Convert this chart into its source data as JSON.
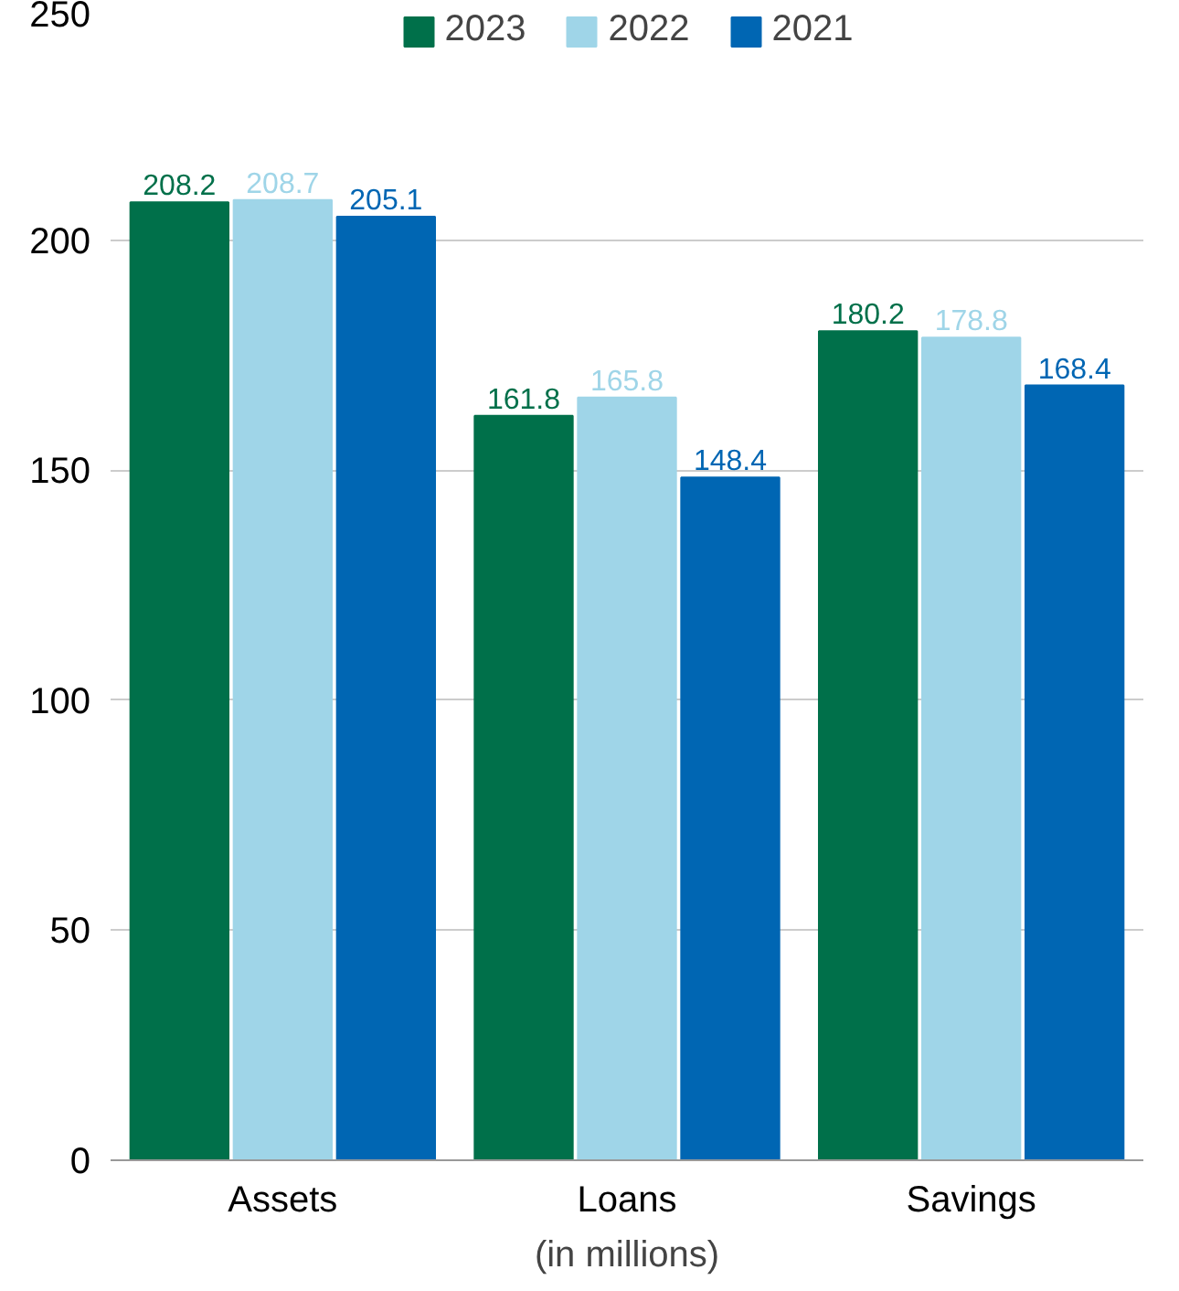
{
  "chart_data": {
    "type": "bar",
    "xlabel": "(in millions)",
    "categories": [
      "Assets",
      "Loans",
      "Savings"
    ],
    "series": [
      {
        "name": "2023",
        "color": "#00704a",
        "values": [
          208.2,
          161.8,
          180.2
        ]
      },
      {
        "name": "2022",
        "color": "#9fd5e8",
        "values": [
          208.7,
          165.8,
          178.8
        ]
      },
      {
        "name": "2021",
        "color": "#0066b3",
        "values": [
          205.1,
          148.4,
          168.4
        ]
      }
    ],
    "ylim": [
      0,
      250
    ],
    "yticks": [
      0,
      50,
      100,
      150,
      200,
      250
    ],
    "grid": "y",
    "legend": "top",
    "data_labels": true
  }
}
